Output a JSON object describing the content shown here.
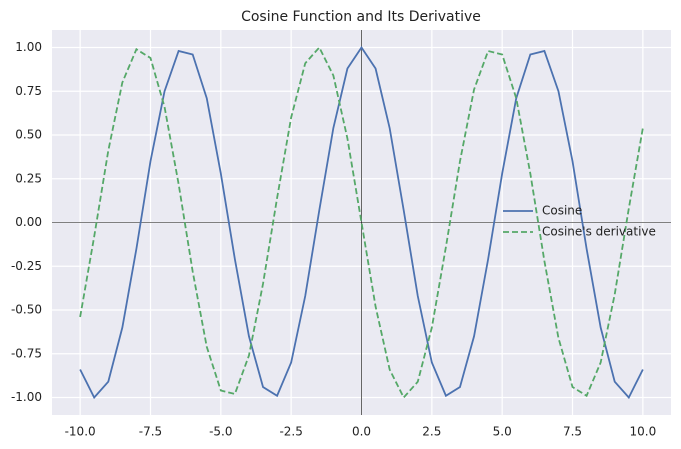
{
  "chart_data": {
    "type": "line",
    "title": "Cosine Function and Its Derivative",
    "x": [
      -10,
      -9.5,
      -9,
      -8.5,
      -8,
      -7.5,
      -7,
      -6.5,
      -6,
      -5.5,
      -5,
      -4.5,
      -4,
      -3.5,
      -3,
      -2.5,
      -2,
      -1.5,
      -1,
      -0.5,
      0,
      0.5,
      1,
      1.5,
      2,
      2.5,
      3,
      3.5,
      4,
      4.5,
      5,
      5.5,
      6,
      6.5,
      7,
      7.5,
      8,
      8.5,
      9,
      9.5,
      10
    ],
    "series": [
      {
        "name": "Cosine",
        "color": "#4c72b0",
        "dash": "solid",
        "values": [
          -0.84,
          -1.0,
          -0.91,
          -0.6,
          -0.15,
          0.35,
          0.75,
          0.98,
          0.96,
          0.71,
          0.28,
          -0.21,
          -0.65,
          -0.94,
          -0.99,
          -0.8,
          -0.42,
          0.07,
          0.54,
          0.88,
          1,
          0.88,
          0.54,
          0.07,
          -0.42,
          -0.8,
          -0.99,
          -0.94,
          -0.65,
          -0.21,
          0.28,
          0.71,
          0.96,
          0.98,
          0.75,
          0.35,
          -0.15,
          -0.6,
          -0.91,
          -1.0,
          -0.84
        ]
      },
      {
        "name": "Cosine's derivative",
        "color": "#55a868",
        "dash": "dashed",
        "values": [
          -0.54,
          -0.08,
          0.41,
          0.8,
          0.99,
          0.94,
          0.66,
          0.22,
          -0.28,
          -0.71,
          -0.96,
          -0.98,
          -0.76,
          -0.35,
          0.14,
          0.6,
          0.91,
          1.0,
          0.84,
          0.48,
          0,
          -0.48,
          -0.84,
          -1.0,
          -0.91,
          -0.6,
          -0.14,
          0.35,
          0.76,
          0.98,
          0.96,
          0.71,
          0.28,
          -0.22,
          -0.66,
          -0.94,
          -0.99,
          -0.8,
          -0.41,
          0.08,
          0.54
        ]
      }
    ],
    "xlim": [
      -11,
      11
    ],
    "ylim": [
      -1.1,
      1.1
    ],
    "xticks": [
      {
        "value": -10,
        "label": "-10.0"
      },
      {
        "value": -7.5,
        "label": "-7.5"
      },
      {
        "value": -5,
        "label": "-5.0"
      },
      {
        "value": -2.5,
        "label": "-2.5"
      },
      {
        "value": 0,
        "label": "0.0"
      },
      {
        "value": 2.5,
        "label": "2.5"
      },
      {
        "value": 5,
        "label": "5.0"
      },
      {
        "value": 7.5,
        "label": "7.5"
      },
      {
        "value": 10,
        "label": "10.0"
      }
    ],
    "yticks": [
      {
        "value": -1,
        "label": "-1.00"
      },
      {
        "value": -0.75,
        "label": "-0.75"
      },
      {
        "value": -0.5,
        "label": "-0.50"
      },
      {
        "value": -0.25,
        "label": "-0.25"
      },
      {
        "value": 0,
        "label": "0.00"
      },
      {
        "value": 0.25,
        "label": "0.25"
      },
      {
        "value": 0.5,
        "label": "0.50"
      },
      {
        "value": 0.75,
        "label": "0.75"
      },
      {
        "value": 1,
        "label": "1.00"
      }
    ],
    "reference_lines": {
      "x": 0,
      "y": 0
    },
    "grid": true,
    "legend": "right"
  }
}
